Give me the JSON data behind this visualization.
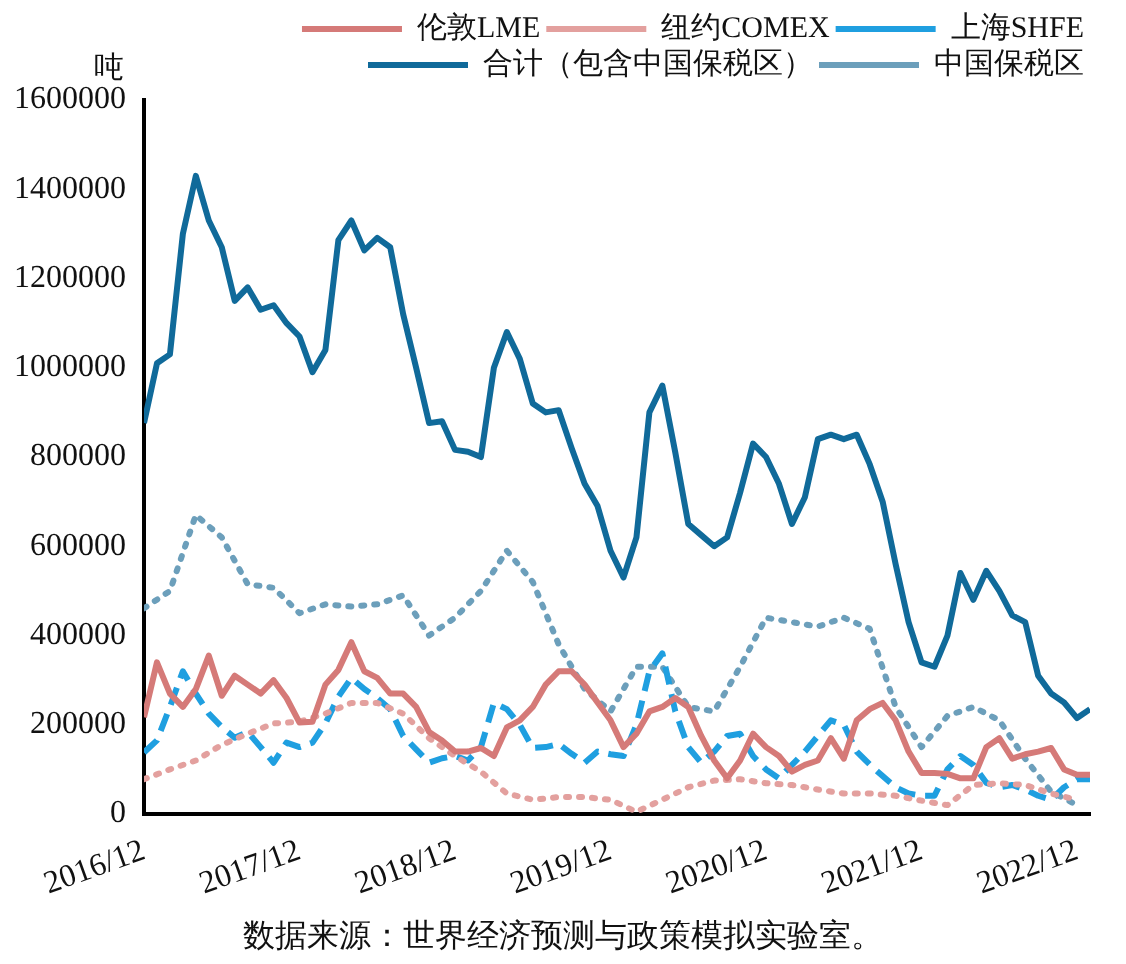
{
  "chart_data": {
    "type": "line",
    "ylabel": "吨",
    "annotations": [
      "数据来源：世界经济预测与政策模拟实验室。"
    ],
    "xlim": [
      "2016-12",
      "2023-01"
    ],
    "xticks": [
      {
        "value": "2016-12",
        "label": "2016/12"
      },
      {
        "value": "2017-12",
        "label": "2017/12"
      },
      {
        "value": "2018-12",
        "label": "2018/12"
      },
      {
        "value": "2019-12",
        "label": "2019/12"
      },
      {
        "value": "2020-12",
        "label": "2020/12"
      },
      {
        "value": "2021-12",
        "label": "2021/12"
      },
      {
        "value": "2022-12",
        "label": "2022/12"
      }
    ],
    "ylim": [
      0,
      1600000
    ],
    "yticks": [
      0,
      200000,
      400000,
      600000,
      800000,
      1000000,
      1200000,
      1400000,
      1600000
    ],
    "grid": false,
    "legend": "top right",
    "marker": "none",
    "x": [
      "2016-12",
      "2017-01",
      "2017-02",
      "2017-03",
      "2017-04",
      "2017-05",
      "2017-06",
      "2017-07",
      "2017-08",
      "2017-09",
      "2017-10",
      "2017-11",
      "2017-12",
      "2018-01",
      "2018-02",
      "2018-03",
      "2018-04",
      "2018-05",
      "2018-06",
      "2018-07",
      "2018-08",
      "2018-09",
      "2018-10",
      "2018-11",
      "2018-12",
      "2019-01",
      "2019-02",
      "2019-03",
      "2019-04",
      "2019-05",
      "2019-06",
      "2019-07",
      "2019-08",
      "2019-09",
      "2019-10",
      "2019-11",
      "2019-12",
      "2020-01",
      "2020-02",
      "2020-03",
      "2020-04",
      "2020-05",
      "2020-06",
      "2020-07",
      "2020-08",
      "2020-09",
      "2020-10",
      "2020-11",
      "2020-12",
      "2021-01",
      "2021-02",
      "2021-03",
      "2021-04",
      "2021-05",
      "2021-06",
      "2021-07",
      "2021-08",
      "2021-09",
      "2021-10",
      "2021-11",
      "2021-12",
      "2022-01",
      "2022-02",
      "2022-03",
      "2022-04",
      "2022-05",
      "2022-06",
      "2022-07",
      "2022-08",
      "2022-09",
      "2022-10",
      "2022-11",
      "2022-12",
      "2023-01"
    ],
    "series": [
      {
        "name": "伦敦LME",
        "color": "#d57a78",
        "line_style": "solid",
        "values": [
          217000,
          340000,
          270000,
          240000,
          280000,
          355000,
          265000,
          310000,
          290000,
          270000,
          300000,
          260000,
          205000,
          207000,
          290000,
          323000,
          385000,
          320000,
          305000,
          270000,
          270000,
          240000,
          184000,
          165000,
          140000,
          140000,
          148000,
          130000,
          194000,
          210000,
          240000,
          290000,
          320000,
          320000,
          290000,
          250000,
          210000,
          150000,
          180000,
          230000,
          240000,
          260000,
          240000,
          175000,
          120000,
          80000,
          120000,
          180000,
          150000,
          130000,
          95000,
          110000,
          120000,
          170000,
          124000,
          210000,
          235000,
          249000,
          210000,
          140000,
          92000,
          92000,
          90000,
          80000,
          80000,
          150000,
          170000,
          124000,
          134000,
          140000,
          148000,
          100000,
          88000,
          88000
        ]
      },
      {
        "name": "纽约COMEX",
        "color": "#e3a09e",
        "line_style": "dotted",
        "x": [
          "2016-12",
          "2017-02",
          "2017-04",
          "2017-06",
          "2017-08",
          "2017-10",
          "2017-12",
          "2018-02",
          "2018-04",
          "2018-06",
          "2018-08",
          "2018-10",
          "2018-12",
          "2019-02",
          "2019-04",
          "2019-06",
          "2019-08",
          "2019-10",
          "2019-12",
          "2020-02",
          "2020-04",
          "2020-06",
          "2020-08",
          "2020-10",
          "2020-12",
          "2021-02",
          "2021-04",
          "2021-06",
          "2021-08",
          "2021-10",
          "2021-12",
          "2022-02",
          "2022-04",
          "2022-06",
          "2022-08",
          "2022-10",
          "2022-12"
        ],
        "values": [
          78000,
          100000,
          120000,
          155000,
          180000,
          203000,
          207000,
          225000,
          249000,
          249000,
          225000,
          170000,
          130000,
          95000,
          46000,
          32000,
          38000,
          38000,
          32000,
          5000,
          32000,
          60000,
          75000,
          78000,
          69000,
          65000,
          55000,
          46000,
          46000,
          41000,
          30000,
          20000,
          65000,
          69000,
          65000,
          46000,
          32000
        ]
      },
      {
        "name": "上海SHFE",
        "color": "#1f9fe0",
        "line_style": "dashed",
        "values": [
          138000,
          165000,
          240000,
          320000,
          270000,
          225000,
          195000,
          171000,
          184000,
          150000,
          115000,
          160000,
          150000,
          160000,
          203000,
          263000,
          305000,
          280000,
          260000,
          235000,
          175000,
          145000,
          115000,
          125000,
          130000,
          120000,
          150000,
          249000,
          235000,
          200000,
          148000,
          150000,
          157000,
          135000,
          115000,
          140000,
          134000,
          130000,
          200000,
          320000,
          360000,
          230000,
          150000,
          115000,
          140000,
          175000,
          180000,
          130000,
          100000,
          80000,
          110000,
          140000,
          175000,
          210000,
          200000,
          140000,
          111000,
          85000,
          60000,
          46000,
          41000,
          41000,
          100000,
          130000,
          110000,
          70000,
          60000,
          65000,
          55000,
          41000,
          32000,
          60000,
          78000,
          78000
        ]
      },
      {
        "name": "合计（包含中国保税区）",
        "color": "#106a9a",
        "line_style": "solid",
        "values": [
          876000,
          1010000,
          1030000,
          1300000,
          1430000,
          1330000,
          1270000,
          1150000,
          1180000,
          1130000,
          1140000,
          1100000,
          1070000,
          990000,
          1040000,
          1286000,
          1330000,
          1263000,
          1291000,
          1270000,
          1120000,
          1000000,
          876000,
          880000,
          816000,
          812000,
          800000,
          1000000,
          1080000,
          1020000,
          920000,
          900000,
          905000,
          820000,
          740000,
          690000,
          590000,
          530000,
          620000,
          900000,
          960000,
          810000,
          650000,
          625000,
          600000,
          620000,
          720000,
          830000,
          800000,
          740000,
          650000,
          710000,
          840000,
          850000,
          840000,
          850000,
          784000,
          700000,
          560000,
          430000,
          340000,
          330000,
          400000,
          540000,
          480000,
          545000,
          500000,
          445000,
          430000,
          310000,
          270000,
          250000,
          215000,
          235000
        ]
      },
      {
        "name": "中国保税区",
        "color": "#6c9fbb",
        "line_style": "dotted",
        "x": [
          "2016-12",
          "2017-02",
          "2017-04",
          "2017-06",
          "2017-08",
          "2017-10",
          "2017-12",
          "2018-02",
          "2018-04",
          "2018-06",
          "2018-08",
          "2018-10",
          "2018-12",
          "2019-02",
          "2019-04",
          "2019-06",
          "2019-08",
          "2019-10",
          "2019-12",
          "2020-02",
          "2020-04",
          "2020-06",
          "2020-08",
          "2020-10",
          "2020-12",
          "2021-02",
          "2021-04",
          "2021-06",
          "2021-08",
          "2021-10",
          "2021-12",
          "2022-02",
          "2022-04",
          "2022-06",
          "2022-08",
          "2022-10",
          "2022-12"
        ],
        "values": [
          461000,
          500000,
          670000,
          620000,
          515000,
          507000,
          450000,
          470000,
          465000,
          470000,
          490000,
          400000,
          440000,
          500000,
          590000,
          520000,
          380000,
          280000,
          230000,
          330000,
          330000,
          240000,
          230000,
          330000,
          440000,
          430000,
          420000,
          440000,
          415000,
          240000,
          150000,
          220000,
          240000,
          210000,
          124000,
          50000,
          20000
        ]
      }
    ]
  }
}
